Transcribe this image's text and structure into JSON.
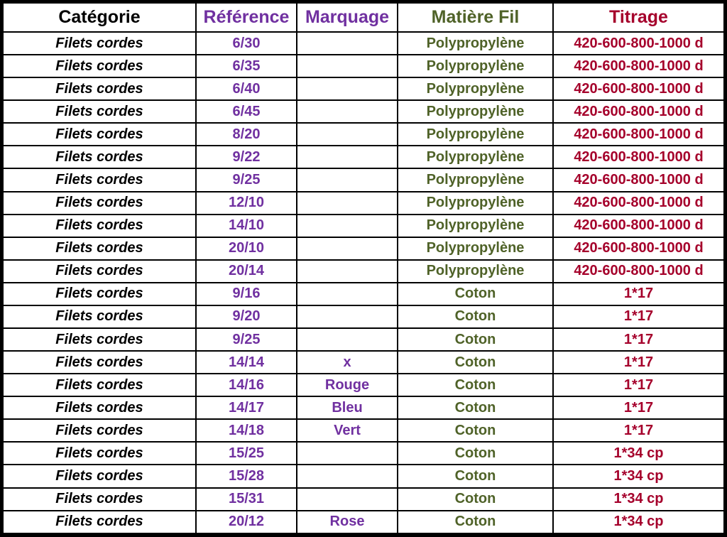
{
  "header": {
    "categorie": "Catégorie",
    "reference": "Référence",
    "marquage": "Marquage",
    "matiere": "Matière Fil",
    "titrage": "Titrage"
  },
  "colors": {
    "categorie": "#000000",
    "reference": "#7030a0",
    "marquage": "#7030a0",
    "matiere": "#4f6228",
    "titrage": "#a5002b"
  },
  "rows": [
    {
      "categorie": "Filets cordes",
      "reference": "6/30",
      "marquage": "",
      "matiere": "Polypropylène",
      "titrage": "420-600-800-1000 d"
    },
    {
      "categorie": "Filets cordes",
      "reference": "6/35",
      "marquage": "",
      "matiere": "Polypropylène",
      "titrage": "420-600-800-1000 d"
    },
    {
      "categorie": "Filets cordes",
      "reference": "6/40",
      "marquage": "",
      "matiere": "Polypropylène",
      "titrage": "420-600-800-1000 d"
    },
    {
      "categorie": "Filets cordes",
      "reference": "6/45",
      "marquage": "",
      "matiere": "Polypropylène",
      "titrage": "420-600-800-1000 d"
    },
    {
      "categorie": "Filets cordes",
      "reference": "8/20",
      "marquage": "",
      "matiere": "Polypropylène",
      "titrage": "420-600-800-1000 d"
    },
    {
      "categorie": "Filets cordes",
      "reference": "9/22",
      "marquage": "",
      "matiere": "Polypropylène",
      "titrage": "420-600-800-1000 d"
    },
    {
      "categorie": "Filets cordes",
      "reference": "9/25",
      "marquage": "",
      "matiere": "Polypropylène",
      "titrage": "420-600-800-1000 d"
    },
    {
      "categorie": "Filets cordes",
      "reference": "12/10",
      "marquage": "",
      "matiere": "Polypropylène",
      "titrage": "420-600-800-1000 d"
    },
    {
      "categorie": "Filets cordes",
      "reference": "14/10",
      "marquage": "",
      "matiere": "Polypropylène",
      "titrage": "420-600-800-1000 d"
    },
    {
      "categorie": "Filets cordes",
      "reference": "20/10",
      "marquage": "",
      "matiere": "Polypropylène",
      "titrage": "420-600-800-1000 d"
    },
    {
      "categorie": "Filets cordes",
      "reference": "20/14",
      "marquage": "",
      "matiere": "Polypropylène",
      "titrage": "420-600-800-1000 d"
    },
    {
      "categorie": "Filets cordes",
      "reference": "9/16",
      "marquage": "",
      "matiere": "Coton",
      "titrage": "1*17"
    },
    {
      "categorie": "Filets cordes",
      "reference": "9/20",
      "marquage": "",
      "matiere": "Coton",
      "titrage": "1*17"
    },
    {
      "categorie": "Filets cordes",
      "reference": "9/25",
      "marquage": "",
      "matiere": "Coton",
      "titrage": "1*17"
    },
    {
      "categorie": "Filets cordes",
      "reference": "14/14",
      "marquage": "x",
      "matiere": "Coton",
      "titrage": "1*17"
    },
    {
      "categorie": "Filets cordes",
      "reference": "14/16",
      "marquage": "Rouge",
      "matiere": "Coton",
      "titrage": "1*17"
    },
    {
      "categorie": "Filets cordes",
      "reference": "14/17",
      "marquage": "Bleu",
      "matiere": "Coton",
      "titrage": "1*17"
    },
    {
      "categorie": "Filets cordes",
      "reference": "14/18",
      "marquage": "Vert",
      "matiere": "Coton",
      "titrage": "1*17"
    },
    {
      "categorie": "Filets cordes",
      "reference": "15/25",
      "marquage": "",
      "matiere": "Coton",
      "titrage": "1*34 cp"
    },
    {
      "categorie": "Filets cordes",
      "reference": "15/28",
      "marquage": "",
      "matiere": "Coton",
      "titrage": "1*34 cp"
    },
    {
      "categorie": "Filets cordes",
      "reference": "15/31",
      "marquage": "",
      "matiere": "Coton",
      "titrage": "1*34 cp"
    },
    {
      "categorie": "Filets cordes",
      "reference": "20/12",
      "marquage": "Rose",
      "matiere": "Coton",
      "titrage": "1*34 cp"
    }
  ]
}
